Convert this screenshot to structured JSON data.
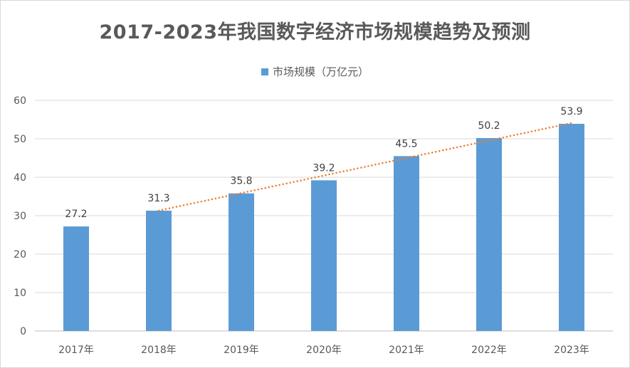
{
  "chart_data": {
    "type": "bar",
    "title": "2017-2023年我国数字经济市场规模趋势及预测",
    "categories": [
      "2017年",
      "2018年",
      "2019年",
      "2020年",
      "2021年",
      "2022年",
      "2023年"
    ],
    "series": [
      {
        "name": "市场规模（万亿元）",
        "values": [
          27.2,
          31.3,
          35.8,
          39.2,
          45.5,
          50.2,
          53.9
        ],
        "color": "#5B9BD5"
      }
    ],
    "data_labels": [
      "27.2",
      "31.3",
      "35.8",
      "39.2",
      "45.5",
      "50.2",
      "53.9"
    ],
    "y_ticks": [
      "0",
      "10",
      "20",
      "30",
      "40",
      "50",
      "60"
    ],
    "ylim": [
      0,
      60
    ],
    "grid": true,
    "legend_position": "top",
    "trendline": {
      "type": "linear",
      "style": "dotted",
      "color": "#ED7D31",
      "x_range": [
        "2018年",
        "2023年"
      ]
    },
    "xlabel": "",
    "ylabel": ""
  }
}
